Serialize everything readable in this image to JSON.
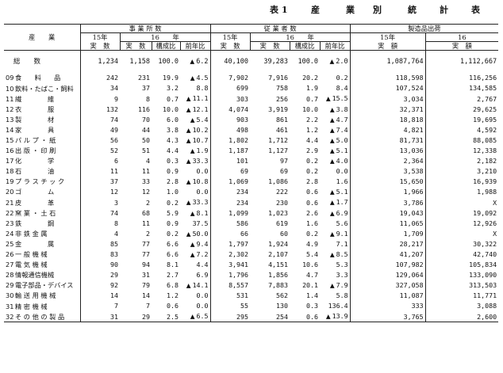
{
  "title": {
    "label": "表 1",
    "words": [
      "産",
      "業",
      "別",
      "統",
      "計",
      "表"
    ]
  },
  "headers": {
    "industry": "産　　業",
    "establishments": "事 業 所 数",
    "employees": "従 業 者 数",
    "shipments": "製造品出荷",
    "year15": "15年",
    "year16": "16　　年",
    "year16_short": "16",
    "actual": "実　数",
    "composition": "構成比",
    "prev_ratio": "前年比",
    "amount": "実　額"
  },
  "total": {
    "label": "総　　数",
    "e15": "1,234",
    "e16": "1,158",
    "ec": "100.0",
    "edec": true,
    "er": "6.2",
    "p15": "40,100",
    "p16": "39,283",
    "pc": "100.0",
    "pdec": true,
    "pr": "2.0",
    "s15": "1,087,764",
    "s16": "1,112,667"
  },
  "rows": [
    {
      "code": "09",
      "name": "食　　料　　品",
      "e15": "242",
      "e16": "231",
      "ec": "19.9",
      "edec": true,
      "er": "4.5",
      "p15": "7,902",
      "p16": "7,916",
      "pc": "20.2",
      "pdec": false,
      "pr": "0.2",
      "s15": "118,598",
      "s16": "116,256"
    },
    {
      "code": "10",
      "name": "飲料・たばこ・飼料",
      "e15": "34",
      "e16": "37",
      "ec": "3.2",
      "edec": false,
      "er": "8.8",
      "p15": "699",
      "p16": "758",
      "pc": "1.9",
      "pdec": false,
      "pr": "8.4",
      "s15": "107,524",
      "s16": "134,585"
    },
    {
      "code": "11",
      "name": "繊　　　　維",
      "e15": "9",
      "e16": "8",
      "ec": "0.7",
      "edec": true,
      "er": "11.1",
      "p15": "303",
      "p16": "256",
      "pc": "0.7",
      "pdec": true,
      "pr": "15.5",
      "s15": "3,034",
      "s16": "2,767"
    },
    {
      "code": "12",
      "name": "衣　　　　服",
      "e15": "132",
      "e16": "116",
      "ec": "10.0",
      "edec": true,
      "er": "12.1",
      "p15": "4,074",
      "p16": "3,919",
      "pc": "10.0",
      "pdec": true,
      "pr": "3.8",
      "s15": "32,371",
      "s16": "29,625"
    },
    {
      "code": "13",
      "name": "製　　　　材",
      "e15": "74",
      "e16": "70",
      "ec": "6.0",
      "edec": true,
      "er": "5.4",
      "p15": "903",
      "p16": "861",
      "pc": "2.2",
      "pdec": true,
      "pr": "4.7",
      "s15": "18,818",
      "s16": "19,695"
    },
    {
      "code": "14",
      "name": "家　　　　具",
      "e15": "49",
      "e16": "44",
      "ec": "3.8",
      "edec": true,
      "er": "10.2",
      "p15": "498",
      "p16": "461",
      "pc": "1.2",
      "pdec": true,
      "pr": "7.4",
      "s15": "4,821",
      "s16": "4,592"
    },
    {
      "code": "15",
      "name": "パ ル プ ・ 紙",
      "e15": "56",
      "e16": "50",
      "ec": "4.3",
      "edec": true,
      "er": "10.7",
      "p15": "1,802",
      "p16": "1,712",
      "pc": "4.4",
      "pdec": true,
      "pr": "5.0",
      "s15": "81,731",
      "s16": "88,085"
    },
    {
      "code": "16",
      "name": "出 版 ・ 印 刷",
      "e15": "52",
      "e16": "51",
      "ec": "4.4",
      "edec": true,
      "er": "1.9",
      "p15": "1,187",
      "p16": "1,127",
      "pc": "2.9",
      "pdec": true,
      "pr": "5.1",
      "s15": "13,036",
      "s16": "12,338"
    },
    {
      "code": "17",
      "name": "化　　　　学",
      "e15": "6",
      "e16": "4",
      "ec": "0.3",
      "edec": true,
      "er": "33.3",
      "p15": "101",
      "p16": "97",
      "pc": "0.2",
      "pdec": true,
      "pr": "4.0",
      "s15": "2,364",
      "s16": "2,182"
    },
    {
      "code": "18",
      "name": "石　　　　油",
      "e15": "11",
      "e16": "11",
      "ec": "0.9",
      "edec": false,
      "er": "0.0",
      "p15": "69",
      "p16": "69",
      "pc": "0.2",
      "pdec": false,
      "pr": "0.0",
      "s15": "3,538",
      "s16": "3,210"
    },
    {
      "code": "19",
      "name": "プ ラ ス チ ッ ク",
      "e15": "37",
      "e16": "33",
      "ec": "2.8",
      "edec": true,
      "er": "10.8",
      "p15": "1,069",
      "p16": "1,086",
      "pc": "2.8",
      "pdec": false,
      "pr": "1.6",
      "s15": "15,650",
      "s16": "16,939"
    },
    {
      "code": "20",
      "name": "ゴ　　　　ム",
      "e15": "12",
      "e16": "12",
      "ec": "1.0",
      "edec": false,
      "er": "0.0",
      "p15": "234",
      "p16": "222",
      "pc": "0.6",
      "pdec": true,
      "pr": "5.1",
      "s15": "1,966",
      "s16": "1,988"
    },
    {
      "code": "21",
      "name": "皮　　　　革",
      "e15": "3",
      "e16": "2",
      "ec": "0.2",
      "edec": true,
      "er": "33.3",
      "p15": "234",
      "p16": "230",
      "pc": "0.6",
      "pdec": true,
      "pr": "1.7",
      "s15": "3,786",
      "s16": "X"
    },
    {
      "code": "22",
      "name": "窯 業 ・ 土 石",
      "e15": "74",
      "e16": "68",
      "ec": "5.9",
      "edec": true,
      "er": "8.1",
      "p15": "1,099",
      "p16": "1,023",
      "pc": "2.6",
      "pdec": true,
      "pr": "6.9",
      "s15": "19,043",
      "s16": "19,092"
    },
    {
      "code": "23",
      "name": "鉄　　　　鋼",
      "e15": "8",
      "e16": "11",
      "ec": "0.9",
      "edec": false,
      "er": "37.5",
      "p15": "586",
      "p16": "619",
      "pc": "1.6",
      "pdec": false,
      "pr": "5.6",
      "s15": "11,065",
      "s16": "12,926"
    },
    {
      "code": "24",
      "name": "非 鉄 金 属",
      "e15": "4",
      "e16": "2",
      "ec": "0.2",
      "edec": true,
      "er": "50.0",
      "p15": "66",
      "p16": "60",
      "pc": "0.2",
      "pdec": true,
      "pr": "9.1",
      "s15": "1,709",
      "s16": "X"
    },
    {
      "code": "25",
      "name": "金　　　　属",
      "e15": "85",
      "e16": "77",
      "ec": "6.6",
      "edec": true,
      "er": "9.4",
      "p15": "1,797",
      "p16": "1,924",
      "pc": "4.9",
      "pdec": false,
      "pr": "7.1",
      "s15": "28,217",
      "s16": "30,322"
    },
    {
      "code": "26",
      "name": "一 般 機 械",
      "e15": "83",
      "e16": "77",
      "ec": "6.6",
      "edec": true,
      "er": "7.2",
      "p15": "2,302",
      "p16": "2,107",
      "pc": "5.4",
      "pdec": true,
      "pr": "8.5",
      "s15": "41,207",
      "s16": "42,740"
    },
    {
      "code": "27",
      "name": "電 気 機 械",
      "e15": "90",
      "e16": "94",
      "ec": "8.1",
      "edec": false,
      "er": "4.4",
      "p15": "3,941",
      "p16": "4,151",
      "pc": "10.6",
      "pdec": false,
      "pr": "5.3",
      "s15": "107,982",
      "s16": "105,834"
    },
    {
      "code": "28",
      "name": "情報通信機械",
      "e15": "29",
      "e16": "31",
      "ec": "2.7",
      "edec": false,
      "er": "6.9",
      "p15": "1,796",
      "p16": "1,856",
      "pc": "4.7",
      "pdec": false,
      "pr": "3.3",
      "s15": "129,064",
      "s16": "133,090"
    },
    {
      "code": "29",
      "name": "電子部品・デバイス",
      "e15": "92",
      "e16": "79",
      "ec": "6.8",
      "edec": true,
      "er": "14.1",
      "p15": "8,557",
      "p16": "7,883",
      "pc": "20.1",
      "pdec": true,
      "pr": "7.9",
      "s15": "327,058",
      "s16": "313,503"
    },
    {
      "code": "30",
      "name": "輸 送 用 機 械",
      "e15": "14",
      "e16": "14",
      "ec": "1.2",
      "edec": false,
      "er": "0.0",
      "p15": "531",
      "p16": "562",
      "pc": "1.4",
      "pdec": false,
      "pr": "5.8",
      "s15": "11,087",
      "s16": "11,771"
    },
    {
      "code": "31",
      "name": "精 密 機 械",
      "e15": "7",
      "e16": "7",
      "ec": "0.6",
      "edec": false,
      "er": "0.0",
      "p15": "55",
      "p16": "130",
      "pc": "0.3",
      "pdec": false,
      "pr": "136.4",
      "s15": "333",
      "s16": "3,088"
    },
    {
      "code": "32",
      "name": "そ の 他 の 製 品",
      "e15": "31",
      "e16": "29",
      "ec": "2.5",
      "edec": true,
      "er": "6.5",
      "p15": "295",
      "p16": "254",
      "pc": "0.6",
      "pdec": true,
      "pr": "13.9",
      "s15": "3,765",
      "s16": "2,600"
    }
  ]
}
